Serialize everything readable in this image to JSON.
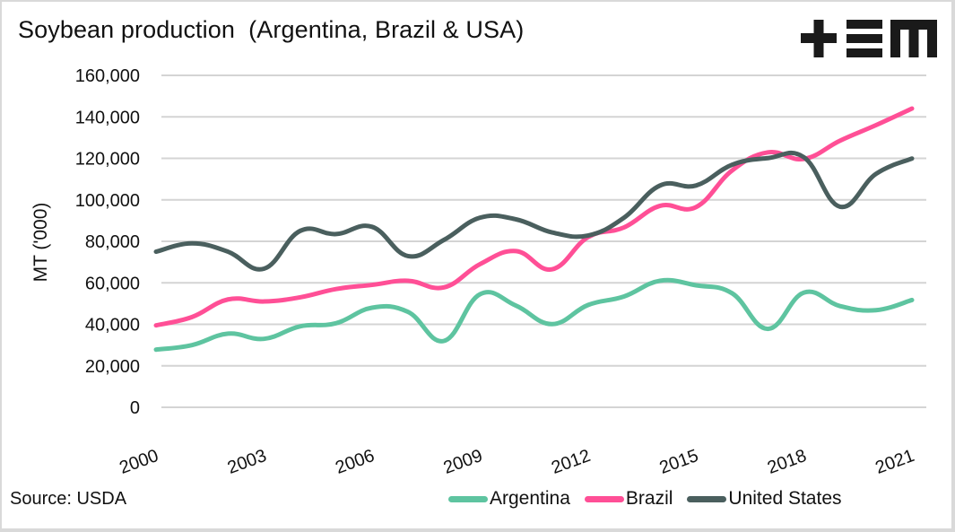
{
  "header": {
    "title": "Soybean production  (Argentina, Brazil & USA)",
    "logo": "tem-logo"
  },
  "footer": {
    "source": "Source: USDA"
  },
  "chart_data": {
    "type": "line",
    "title": "Soybean production  (Argentina, Brazil & USA)",
    "xlabel": "",
    "ylabel": "MT ('000)",
    "ylim": [
      0,
      160000
    ],
    "yticks": [
      0,
      20000,
      40000,
      60000,
      80000,
      100000,
      120000,
      140000,
      160000
    ],
    "ytick_labels": [
      "0",
      "20,000",
      "40,000",
      "60,000",
      "80,000",
      "100,000",
      "120,000",
      "140,000",
      "160,000"
    ],
    "x": [
      2000,
      2001,
      2002,
      2003,
      2004,
      2005,
      2006,
      2007,
      2008,
      2009,
      2010,
      2011,
      2012,
      2013,
      2014,
      2015,
      2016,
      2017,
      2018,
      2019,
      2020,
      2021
    ],
    "xticks": [
      2000,
      2003,
      2006,
      2009,
      2012,
      2015,
      2018,
      2021
    ],
    "xtick_labels": [
      "2000",
      "2003",
      "2006",
      "2009",
      "2012",
      "2015",
      "2018",
      "2021"
    ],
    "grid": "horizontal",
    "smooth": true,
    "legend": "bottom-right",
    "series": [
      {
        "name": "Argentina",
        "color": "#5ec4a0",
        "values": [
          27800,
          30000,
          35500,
          33000,
          39000,
          40500,
          48000,
          46000,
          32000,
          54500,
          49000,
          40100,
          49300,
          53400,
          61000,
          58800,
          55000,
          37800,
          55300,
          48800,
          46800,
          51700
        ]
      },
      {
        "name": "Brazil",
        "color": "#ff4f96",
        "values": [
          39500,
          43500,
          52000,
          51000,
          53000,
          57000,
          59000,
          61000,
          57800,
          69000,
          75300,
          66500,
          82000,
          86700,
          97100,
          96500,
          114100,
          122900,
          119700,
          128500,
          136000,
          144000
        ]
      },
      {
        "name": "United States",
        "color": "#4a5f5e",
        "values": [
          75000,
          79000,
          75000,
          66800,
          85000,
          83500,
          87000,
          72900,
          80700,
          91400,
          90600,
          84300,
          82800,
          91400,
          106900,
          106900,
          116900,
          120100,
          120500,
          96700,
          112500,
          119900
        ]
      }
    ]
  }
}
